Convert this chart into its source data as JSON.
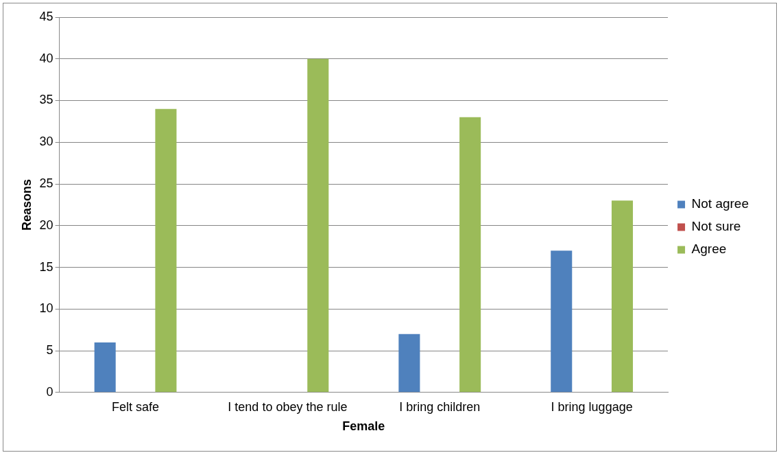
{
  "chart_data": {
    "type": "bar",
    "xlabel": "Female",
    "ylabel": "Reasons",
    "categories": [
      "Felt safe",
      "I tend to obey the rule",
      "I bring children",
      "I bring luggage"
    ],
    "series": [
      {
        "name": "Not agree",
        "color": "#4f81bd",
        "values": [
          6,
          0,
          7,
          17
        ]
      },
      {
        "name": "Not sure",
        "color": "#c0504d",
        "values": [
          0,
          0,
          0,
          0
        ]
      },
      {
        "name": "Agree",
        "color": "#9bbb59",
        "values": [
          34,
          40,
          33,
          23
        ]
      }
    ],
    "ylim": [
      0,
      45
    ],
    "yticks": [
      0,
      5,
      10,
      15,
      20,
      25,
      30,
      35,
      40,
      45
    ],
    "grid": "y",
    "legend": "right"
  }
}
